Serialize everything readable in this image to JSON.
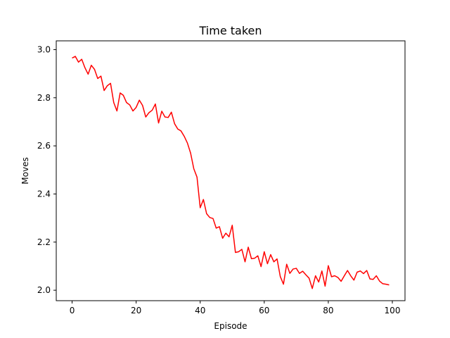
{
  "chart_data": {
    "type": "line",
    "title": "Time taken",
    "xlabel": "Episode",
    "ylabel": "Moves",
    "xlim": [
      -4.95,
      103.95
    ],
    "ylim": [
      1.9565,
      3.0365
    ],
    "xticks": [
      0,
      20,
      40,
      60,
      80,
      100
    ],
    "yticks": [
      2.0,
      2.2,
      2.4,
      2.6,
      2.8,
      3.0
    ],
    "xtick_labels": [
      "0",
      "20",
      "40",
      "60",
      "80",
      "100"
    ],
    "ytick_labels": [
      "2.0",
      "2.2",
      "2.4",
      "2.6",
      "2.8",
      "3.0"
    ],
    "grid": false,
    "series": [
      {
        "color": "#ff0000",
        "x": [
          0,
          1,
          2,
          3,
          4,
          5,
          6,
          7,
          8,
          9,
          10,
          11,
          12,
          13,
          14,
          15,
          16,
          17,
          18,
          19,
          20,
          21,
          22,
          23,
          24,
          25,
          26,
          27,
          28,
          29,
          30,
          31,
          32,
          33,
          34,
          35,
          36,
          37,
          38,
          39,
          40,
          41,
          42,
          43,
          44,
          45,
          46,
          47,
          48,
          49,
          50,
          51,
          52,
          53,
          54,
          55,
          56,
          57,
          58,
          59,
          60,
          61,
          62,
          63,
          64,
          65,
          66,
          67,
          68,
          69,
          70,
          71,
          72,
          73,
          74,
          75,
          76,
          77,
          78,
          79,
          80,
          81,
          82,
          83,
          84,
          85,
          86,
          87,
          88,
          89,
          90,
          91,
          92,
          93,
          94,
          95,
          96,
          97,
          98,
          99
        ],
        "y": [
          2.965,
          2.972,
          2.948,
          2.96,
          2.925,
          2.898,
          2.935,
          2.918,
          2.88,
          2.89,
          2.83,
          2.85,
          2.86,
          2.78,
          2.745,
          2.82,
          2.81,
          2.78,
          2.77,
          2.745,
          2.76,
          2.79,
          2.768,
          2.72,
          2.738,
          2.748,
          2.774,
          2.695,
          2.744,
          2.72,
          2.718,
          2.74,
          2.692,
          2.67,
          2.662,
          2.64,
          2.612,
          2.57,
          2.505,
          2.47,
          2.343,
          2.377,
          2.318,
          2.302,
          2.298,
          2.258,
          2.264,
          2.216,
          2.237,
          2.222,
          2.27,
          2.157,
          2.16,
          2.17,
          2.118,
          2.179,
          2.131,
          2.133,
          2.143,
          2.098,
          2.16,
          2.11,
          2.148,
          2.118,
          2.13,
          2.057,
          2.025,
          2.108,
          2.07,
          2.088,
          2.091,
          2.07,
          2.079,
          2.064,
          2.05,
          2.007,
          2.06,
          2.034,
          2.08,
          2.017,
          2.102,
          2.056,
          2.06,
          2.053,
          2.037,
          2.06,
          2.082,
          2.06,
          2.042,
          2.075,
          2.08,
          2.069,
          2.082,
          2.047,
          2.045,
          2.06,
          2.038,
          2.027,
          2.025,
          2.022
        ]
      }
    ]
  }
}
